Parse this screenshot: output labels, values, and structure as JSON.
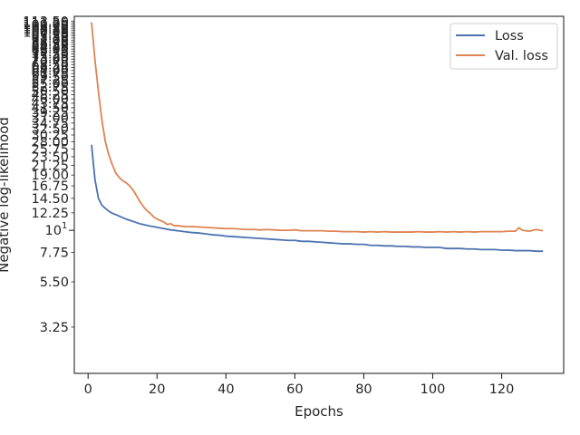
{
  "chart_data": {
    "type": "line",
    "title": "",
    "xlabel": "Epochs",
    "ylabel": "Negative log-likelihood",
    "yscale": "log",
    "xlim": [
      -4,
      138
    ],
    "ylim": [
      1.9,
      120
    ],
    "grid": false,
    "legend": "top-right",
    "x_ticks": [
      "0",
      "20",
      "40",
      "60",
      "80",
      "100",
      "120"
    ],
    "x_tick_values": [
      0,
      20,
      40,
      60,
      80,
      100,
      120
    ],
    "y_major_tick_label": "10",
    "y_major_tick_exponent": "1",
    "y_major_tick_value": 10,
    "y_minor_ticks": [
      "3.25",
      "5.50",
      "7.75",
      "10.00",
      "12.25",
      "14.50",
      "16.75",
      "19.00",
      "21.25",
      "23.50",
      "25.75",
      "28.00",
      "30.25",
      "32.50",
      "34.75",
      "37.00",
      "39.25",
      "41.50",
      "43.75",
      "46.00",
      "48.25",
      "50.50",
      "52.75",
      "55.00",
      "57.25",
      "59.50",
      "61.75",
      "64.00",
      "66.25",
      "68.50",
      "70.75",
      "73.00",
      "75.25",
      "77.50",
      "79.75",
      "82.00",
      "84.25",
      "86.50",
      "88.75",
      "91.00",
      "93.25",
      "95.50",
      "97.75",
      "100.00",
      "102.25",
      "104.50",
      "106.75",
      "109.00",
      "111.25",
      "113.50"
    ],
    "series": [
      {
        "name": "Loss",
        "color": "#4c72b0",
        "x": [
          1,
          2,
          3,
          4,
          5,
          6,
          7,
          8,
          9,
          10,
          11,
          12,
          13,
          14,
          15,
          16,
          17,
          18,
          19,
          20,
          22,
          24,
          26,
          28,
          30,
          32,
          34,
          36,
          38,
          40,
          42,
          44,
          46,
          48,
          50,
          52,
          54,
          56,
          58,
          60,
          62,
          64,
          66,
          68,
          70,
          72,
          74,
          76,
          78,
          80,
          82,
          84,
          86,
          88,
          90,
          92,
          94,
          96,
          98,
          100,
          102,
          104,
          106,
          108,
          110,
          112,
          114,
          116,
          118,
          120,
          122,
          124,
          126,
          128,
          130,
          132
        ],
        "values": [
          27,
          18,
          14.5,
          13.4,
          12.9,
          12.5,
          12.2,
          12.0,
          11.8,
          11.6,
          11.4,
          11.25,
          11.1,
          10.95,
          10.8,
          10.7,
          10.6,
          10.5,
          10.45,
          10.35,
          10.2,
          10.05,
          9.95,
          9.85,
          9.75,
          9.7,
          9.6,
          9.5,
          9.45,
          9.35,
          9.3,
          9.25,
          9.2,
          9.15,
          9.1,
          9.05,
          9.0,
          8.95,
          8.9,
          8.9,
          8.8,
          8.8,
          8.75,
          8.7,
          8.65,
          8.6,
          8.55,
          8.55,
          8.5,
          8.5,
          8.4,
          8.4,
          8.35,
          8.35,
          8.3,
          8.3,
          8.25,
          8.25,
          8.2,
          8.2,
          8.2,
          8.1,
          8.1,
          8.1,
          8.05,
          8.05,
          8.0,
          8.0,
          8.0,
          7.95,
          7.95,
          7.9,
          7.9,
          7.9,
          7.85,
          7.85
        ]
      },
      {
        "name": "Val. loss",
        "color": "#dd8452",
        "x": [
          1,
          2,
          3,
          4,
          5,
          6,
          7,
          8,
          9,
          10,
          11,
          12,
          13,
          14,
          15,
          16,
          17,
          18,
          19,
          20,
          22,
          23,
          24,
          25,
          26,
          28,
          30,
          32,
          34,
          36,
          38,
          40,
          42,
          44,
          46,
          48,
          50,
          52,
          54,
          56,
          58,
          60,
          62,
          64,
          66,
          68,
          70,
          72,
          74,
          76,
          78,
          80,
          82,
          84,
          86,
          88,
          90,
          92,
          94,
          96,
          98,
          100,
          102,
          104,
          106,
          108,
          110,
          112,
          114,
          116,
          118,
          120,
          122,
          124,
          125,
          126,
          128,
          130,
          132
        ],
        "values": [
          112,
          72,
          50,
          36,
          28,
          24,
          21.5,
          19.5,
          18.5,
          17.8,
          17.4,
          16.8,
          16,
          15,
          14,
          13.2,
          12.6,
          12.2,
          11.7,
          11.4,
          11.0,
          10.7,
          10.8,
          10.55,
          10.55,
          10.45,
          10.45,
          10.4,
          10.35,
          10.3,
          10.25,
          10.2,
          10.2,
          10.15,
          10.1,
          10.1,
          10.05,
          10.1,
          10.05,
          10.0,
          10.0,
          10.05,
          9.95,
          9.95,
          9.95,
          9.95,
          9.9,
          9.9,
          9.85,
          9.85,
          9.85,
          9.8,
          9.85,
          9.8,
          9.85,
          9.8,
          9.8,
          9.8,
          9.8,
          9.85,
          9.8,
          9.8,
          9.85,
          9.8,
          9.85,
          9.8,
          9.85,
          9.8,
          9.85,
          9.85,
          9.85,
          9.85,
          9.9,
          9.9,
          10.3,
          10.0,
          9.9,
          10.1,
          9.95
        ]
      }
    ]
  }
}
